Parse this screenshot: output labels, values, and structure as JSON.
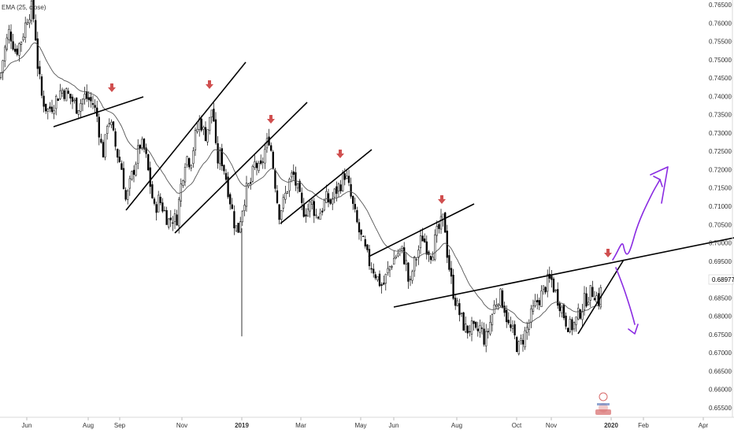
{
  "chart_data": {
    "type": "candlestick",
    "indicator_label": "EMA (25, close)",
    "y_axis": {
      "ticks": [
        "0.76500",
        "0.76000",
        "0.75500",
        "0.75000",
        "0.74500",
        "0.74000",
        "0.73500",
        "0.73000",
        "0.72500",
        "0.72000",
        "0.71500",
        "0.71000",
        "0.70500",
        "0.70000",
        "0.69500",
        "0.68977",
        "0.68500",
        "0.68000",
        "0.67500",
        "0.67000",
        "0.66500",
        "0.66000",
        "0.65500"
      ],
      "current_price": "0.68977",
      "range": [
        0.6525,
        0.7665
      ]
    },
    "x_axis": {
      "ticks": [
        {
          "label": "Jun",
          "bold": false
        },
        {
          "label": "Aug",
          "bold": false
        },
        {
          "label": "Sep",
          "bold": false
        },
        {
          "label": "Nov",
          "bold": false
        },
        {
          "label": "2019",
          "bold": true
        },
        {
          "label": "Mar",
          "bold": false
        },
        {
          "label": "May",
          "bold": false
        },
        {
          "label": "Jun",
          "bold": false
        },
        {
          "label": "Aug",
          "bold": false
        },
        {
          "label": "Oct",
          "bold": false
        },
        {
          "label": "Nov",
          "bold": false
        },
        {
          "label": "2020",
          "bold": true
        },
        {
          "label": "Feb",
          "bold": false
        },
        {
          "label": "Apr",
          "bold": false
        }
      ]
    },
    "price_path": [
      [
        0,
        0.745
      ],
      [
        5,
        0.752
      ],
      [
        12,
        0.758
      ],
      [
        20,
        0.752
      ],
      [
        28,
        0.756
      ],
      [
        35,
        0.762
      ],
      [
        40,
        0.764
      ],
      [
        44,
        0.76
      ],
      [
        48,
        0.748
      ],
      [
        53,
        0.74
      ],
      [
        60,
        0.736
      ],
      [
        68,
        0.738
      ],
      [
        78,
        0.742
      ],
      [
        88,
        0.74
      ],
      [
        98,
        0.737
      ],
      [
        108,
        0.74
      ],
      [
        118,
        0.738
      ],
      [
        124,
        0.734
      ],
      [
        128,
        0.727
      ],
      [
        132,
        0.724
      ],
      [
        137,
        0.735
      ],
      [
        142,
        0.731
      ],
      [
        148,
        0.725
      ],
      [
        155,
        0.72
      ],
      [
        160,
        0.711
      ],
      [
        166,
        0.717
      ],
      [
        172,
        0.722
      ],
      [
        178,
        0.727
      ],
      [
        184,
        0.725
      ],
      [
        190,
        0.717
      ],
      [
        196,
        0.709
      ],
      [
        202,
        0.712
      ],
      [
        208,
        0.709
      ],
      [
        214,
        0.706
      ],
      [
        219,
        0.707
      ],
      [
        224,
        0.706
      ],
      [
        230,
        0.716
      ],
      [
        236,
        0.724
      ],
      [
        242,
        0.722
      ],
      [
        248,
        0.729
      ],
      [
        254,
        0.734
      ],
      [
        260,
        0.729
      ],
      [
        266,
        0.733
      ],
      [
        270,
        0.738
      ],
      [
        275,
        0.722
      ],
      [
        280,
        0.724
      ],
      [
        286,
        0.719
      ],
      [
        292,
        0.712
      ],
      [
        298,
        0.705
      ],
      [
        302,
        0.703
      ],
      [
        306,
        0.708
      ],
      [
        312,
        0.714
      ],
      [
        318,
        0.716
      ],
      [
        324,
        0.722
      ],
      [
        330,
        0.719
      ],
      [
        336,
        0.725
      ],
      [
        342,
        0.729
      ],
      [
        348,
        0.719
      ],
      [
        354,
        0.708
      ],
      [
        360,
        0.711
      ],
      [
        366,
        0.716
      ],
      [
        372,
        0.719
      ],
      [
        378,
        0.714
      ],
      [
        384,
        0.709
      ],
      [
        390,
        0.709
      ],
      [
        396,
        0.711
      ],
      [
        402,
        0.707
      ],
      [
        408,
        0.709
      ],
      [
        414,
        0.712
      ],
      [
        420,
        0.711
      ],
      [
        426,
        0.714
      ],
      [
        432,
        0.716
      ],
      [
        438,
        0.719
      ],
      [
        444,
        0.714
      ],
      [
        450,
        0.708
      ],
      [
        456,
        0.703
      ],
      [
        462,
        0.699
      ],
      [
        468,
        0.695
      ],
      [
        474,
        0.693
      ],
      [
        480,
        0.69
      ],
      [
        486,
        0.688
      ],
      [
        492,
        0.692
      ],
      [
        498,
        0.695
      ],
      [
        504,
        0.697
      ],
      [
        510,
        0.698
      ],
      [
        516,
        0.694
      ],
      [
        520,
        0.687
      ],
      [
        524,
        0.693
      ],
      [
        530,
        0.697
      ],
      [
        536,
        0.702
      ],
      [
        542,
        0.699
      ],
      [
        548,
        0.697
      ],
      [
        554,
        0.702
      ],
      [
        560,
        0.705
      ],
      [
        564,
        0.707
      ],
      [
        568,
        0.697
      ],
      [
        574,
        0.688
      ],
      [
        580,
        0.683
      ],
      [
        586,
        0.679
      ],
      [
        592,
        0.676
      ],
      [
        598,
        0.677
      ],
      [
        604,
        0.675
      ],
      [
        610,
        0.677
      ],
      [
        616,
        0.673
      ],
      [
        622,
        0.678
      ],
      [
        628,
        0.683
      ],
      [
        634,
        0.686
      ],
      [
        640,
        0.683
      ],
      [
        646,
        0.677
      ],
      [
        652,
        0.675
      ],
      [
        658,
        0.671
      ],
      [
        664,
        0.674
      ],
      [
        670,
        0.677
      ],
      [
        676,
        0.681
      ],
      [
        682,
        0.684
      ],
      [
        688,
        0.686
      ],
      [
        694,
        0.689
      ],
      [
        700,
        0.69
      ],
      [
        706,
        0.686
      ],
      [
        712,
        0.683
      ],
      [
        718,
        0.679
      ],
      [
        724,
        0.677
      ],
      [
        730,
        0.678
      ],
      [
        736,
        0.681
      ],
      [
        742,
        0.684
      ],
      [
        748,
        0.686
      ],
      [
        754,
        0.687
      ],
      [
        760,
        0.684
      ],
      [
        764,
        0.688
      ]
    ]
  },
  "price_badge": {
    "text": "0.68977",
    "bg": "#ffffff"
  },
  "colors": {
    "candle": "#000000",
    "ema": "#555555",
    "trendline": "#000000",
    "arrow": "#d04f4f",
    "projection": "#8a2be2",
    "grid": "#f0f3fa"
  }
}
